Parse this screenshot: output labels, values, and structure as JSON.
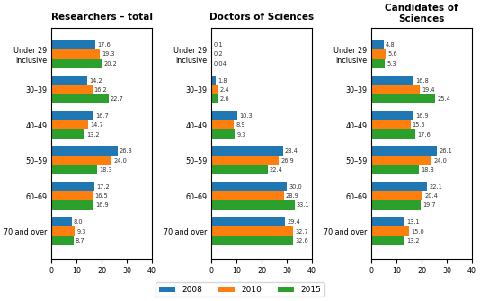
{
  "chart_data": [
    {
      "type": "bar",
      "orientation": "horizontal",
      "title": "Researchers – total",
      "categories": [
        "70 and over",
        "60–69",
        "50–59",
        "40–49",
        "30–39",
        "Under 29\ninclusive"
      ],
      "series": [
        {
          "name": "2008",
          "values": [
            8.0,
            17.2,
            26.3,
            16.7,
            14.2,
            17.6
          ]
        },
        {
          "name": "2010",
          "values": [
            9.3,
            16.5,
            24.0,
            14.7,
            16.2,
            19.3
          ]
        },
        {
          "name": "2015",
          "values": [
            8.7,
            16.9,
            18.3,
            13.2,
            22.7,
            20.2
          ]
        }
      ],
      "xlim": [
        0,
        40
      ],
      "xticks": [
        0,
        10,
        20,
        30,
        40
      ],
      "data_labels": true,
      "legend": "lower center"
    },
    {
      "type": "bar",
      "orientation": "horizontal",
      "title": "Doctors of Sciences",
      "categories": [
        "70 and over",
        "60–69",
        "50–59",
        "40–49",
        "30–39",
        "Under 29\ninclusive"
      ],
      "series": [
        {
          "name": "2008",
          "values": [
            29.4,
            30.0,
            28.4,
            10.3,
            1.8,
            0.1
          ]
        },
        {
          "name": "2010",
          "values": [
            32.7,
            28.9,
            26.9,
            8.9,
            2.4,
            0.2
          ]
        },
        {
          "name": "2015",
          "values": [
            32.6,
            33.1,
            22.4,
            9.3,
            2.6,
            0.04
          ]
        }
      ],
      "xlim": [
        0,
        40
      ],
      "xticks": [
        0,
        10,
        20,
        30,
        40
      ],
      "data_labels": true,
      "legend": "lower center"
    },
    {
      "type": "bar",
      "orientation": "horizontal",
      "title": "Candidates of Sciences",
      "categories": [
        "70 and over",
        "60–69",
        "50–59",
        "40–49",
        "30–39",
        "Under 29\ninclusive"
      ],
      "series": [
        {
          "name": "2008",
          "values": [
            13.1,
            22.1,
            26.1,
            16.9,
            16.8,
            4.8
          ]
        },
        {
          "name": "2010",
          "values": [
            15.0,
            20.4,
            24.0,
            15.5,
            19.4,
            5.6
          ]
        },
        {
          "name": "2015",
          "values": [
            13.2,
            19.7,
            18.8,
            17.6,
            25.4,
            5.3
          ]
        }
      ],
      "xlim": [
        0,
        40
      ],
      "xticks": [
        0,
        10,
        20,
        30,
        40
      ],
      "data_labels": true,
      "legend": "lower center"
    }
  ]
}
